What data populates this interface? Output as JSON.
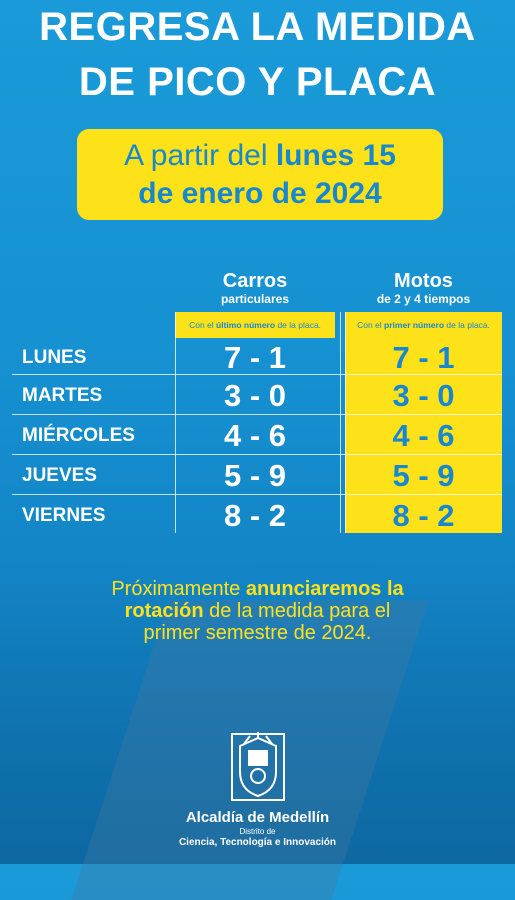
{
  "title": {
    "line1": "REGRESA LA MEDIDA",
    "line2": "DE PICO Y PLACA"
  },
  "date_banner": {
    "part1": "A partir del ",
    "part1_bold": "lunes 15",
    "part2": "de enero de 2024"
  },
  "columns": {
    "carros": {
      "title": "Carros",
      "subtitle": "particulares",
      "note_pre": "Con el ",
      "note_bold": "último número",
      "note_post": " de la placa."
    },
    "motos": {
      "title": "Motos",
      "subtitle": "de 2 y 4 tiempos",
      "note_pre": "Con el ",
      "note_bold": "primer número",
      "note_post": " de la placa."
    }
  },
  "schedule": [
    {
      "day": "LUNES",
      "carros": "7 - 1",
      "motos": "7 - 1"
    },
    {
      "day": "MARTES",
      "carros": "3 - 0",
      "motos": "3 - 0"
    },
    {
      "day": "MIÉRCOLES",
      "carros": "4 - 6",
      "motos": "4 - 6"
    },
    {
      "day": "JUEVES",
      "carros": "5 - 9",
      "motos": "5 - 9"
    },
    {
      "day": "VIERNES",
      "carros": "8 - 2",
      "motos": "8 - 2"
    }
  ],
  "announcement": {
    "t1": "Próximamente ",
    "t1_bold": "anunciaremos la",
    "t2_bold": "rotación",
    "t2": " de la medida para el",
    "t3": "primer semestre de 2024."
  },
  "logo": {
    "name": "Alcaldía de Medellín",
    "sub1": "Distrito de",
    "sub2": "Ciencia, Tecnología e Innovación"
  },
  "colors": {
    "background": "#1a9ad8",
    "accent_yellow": "#fde21a",
    "text_blue": "#1787cf"
  }
}
